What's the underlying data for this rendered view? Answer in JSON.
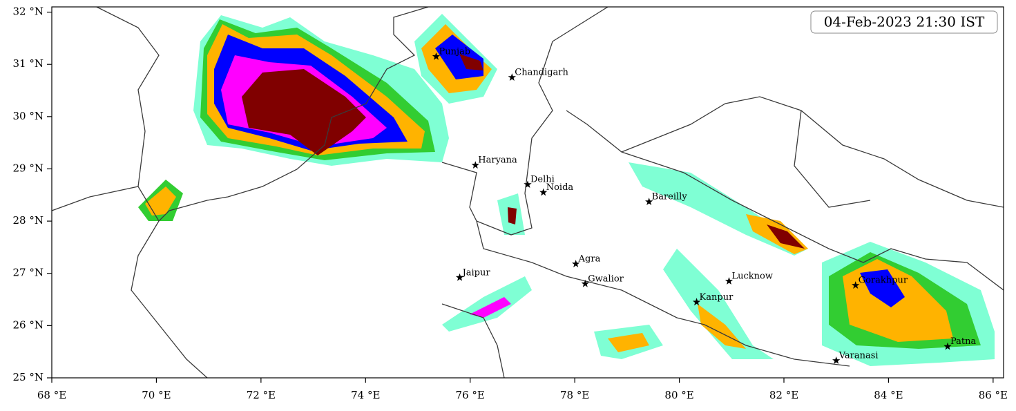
{
  "chart_data": {
    "type": "map",
    "title": "04-Feb-2023 21:30 IST",
    "xlim": [
      68,
      86.2
    ],
    "ylim": [
      25,
      32.1
    ],
    "xticks": [
      {
        "value": 68,
        "label": "68 °E"
      },
      {
        "value": 70,
        "label": "70 °E"
      },
      {
        "value": 72,
        "label": "72 °E"
      },
      {
        "value": 74,
        "label": "74 °E"
      },
      {
        "value": 76,
        "label": "76 °E"
      },
      {
        "value": 78,
        "label": "78 °E"
      },
      {
        "value": 80,
        "label": "80 °E"
      },
      {
        "value": 82,
        "label": "82 °E"
      },
      {
        "value": 84,
        "label": "84 °E"
      },
      {
        "value": 86,
        "label": "86 °E"
      }
    ],
    "yticks": [
      {
        "value": 25,
        "label": "25 °N"
      },
      {
        "value": 26,
        "label": "26 °N"
      },
      {
        "value": 27,
        "label": "27 °N"
      },
      {
        "value": 28,
        "label": "28 °N"
      },
      {
        "value": 29,
        "label": "29 °N"
      },
      {
        "value": 30,
        "label": "30 °N"
      },
      {
        "value": 31,
        "label": "31 °N"
      },
      {
        "value": 32,
        "label": "32 °N"
      }
    ],
    "cities": [
      {
        "name": "Punjab",
        "lon": 75.35,
        "lat": 31.15
      },
      {
        "name": "Chandigarh",
        "lon": 76.8,
        "lat": 30.75
      },
      {
        "name": "Haryana",
        "lon": 76.1,
        "lat": 29.07
      },
      {
        "name": "Delhi",
        "lon": 77.1,
        "lat": 28.7
      },
      {
        "name": "Noida",
        "lon": 77.4,
        "lat": 28.55
      },
      {
        "name": "Bareilly",
        "lon": 79.42,
        "lat": 28.37
      },
      {
        "name": "Agra",
        "lon": 78.02,
        "lat": 27.18
      },
      {
        "name": "Jaipur",
        "lon": 75.8,
        "lat": 26.92
      },
      {
        "name": "Gwalior",
        "lon": 78.2,
        "lat": 26.8
      },
      {
        "name": "Lucknow",
        "lon": 80.95,
        "lat": 26.85
      },
      {
        "name": "Kanpur",
        "lon": 80.33,
        "lat": 26.45
      },
      {
        "name": "Gorakhpur",
        "lon": 83.37,
        "lat": 26.77
      },
      {
        "name": "Patna",
        "lon": 85.13,
        "lat": 25.6
      },
      {
        "name": "Varanasi",
        "lon": 83.0,
        "lat": 25.33
      }
    ]
  }
}
